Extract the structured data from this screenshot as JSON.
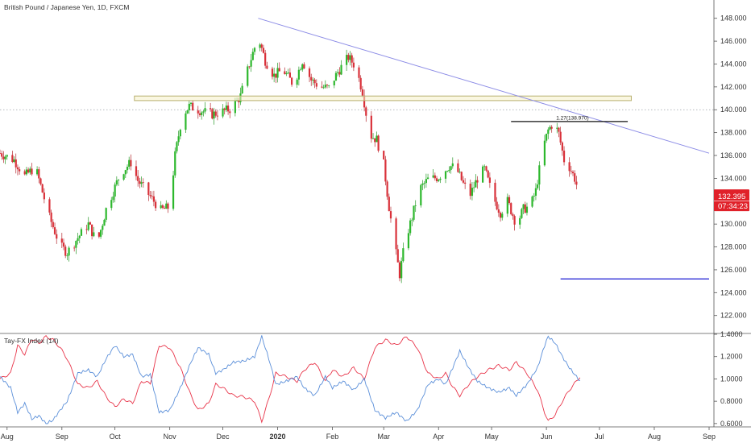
{
  "chart_data": [
    {
      "type": "candlestick",
      "title": "British Pound / Japanese Yen, 1D, FXCM",
      "price_axis": {
        "ylim": [
          120.5,
          149.6
        ],
        "ticks": [
          "148.000",
          "146.000",
          "144.000",
          "142.000",
          "140.000",
          "138.000",
          "136.000",
          "134.000",
          "132.000",
          "130.000",
          "128.000",
          "126.000",
          "124.000",
          "122.000"
        ],
        "tick_values": [
          148,
          146,
          144,
          142,
          140,
          138,
          136,
          134,
          132,
          130,
          128,
          126,
          124,
          122
        ]
      },
      "time_axis": {
        "labels": [
          "Aug",
          "Sep",
          "Oct",
          "Nov",
          "Dec",
          "2020",
          "Feb",
          "Mar",
          "Apr",
          "May",
          "Jun",
          "Jul",
          "Aug",
          "Sep"
        ],
        "label_day_index": [
          4,
          35,
          65,
          96,
          126,
          157,
          188,
          217,
          248,
          278,
          309,
          339,
          370,
          401
        ]
      },
      "last_price": "132.395",
      "countdown": "07:34:23",
      "dotted_level": 140.0,
      "colors": {
        "up": "#26a69a",
        "up_body": "#2db82d",
        "down": "#d9313a",
        "trend": "#8c8ce6",
        "zone": "#b8b070",
        "fib": "#111111",
        "target": "#2d2dd6",
        "price_label": "#e0212a"
      },
      "keyframes": [
        {
          "d": 0,
          "p": 136.2
        },
        {
          "d": 8,
          "p": 135.6
        },
        {
          "d": 14,
          "p": 134.2
        },
        {
          "d": 20,
          "p": 135.0
        },
        {
          "d": 28,
          "p": 130.6
        },
        {
          "d": 34,
          "p": 128.1
        },
        {
          "d": 38,
          "p": 127.5
        },
        {
          "d": 44,
          "p": 128.8
        },
        {
          "d": 50,
          "p": 130.0
        },
        {
          "d": 55,
          "p": 128.3
        },
        {
          "d": 60,
          "p": 131.3
        },
        {
          "d": 68,
          "p": 134.4
        },
        {
          "d": 74,
          "p": 135.4
        },
        {
          "d": 78,
          "p": 133.8
        },
        {
          "d": 84,
          "p": 132.6
        },
        {
          "d": 91,
          "p": 131.2
        },
        {
          "d": 96,
          "p": 131.5
        },
        {
          "d": 99,
          "p": 136.0
        },
        {
          "d": 103,
          "p": 139.5
        },
        {
          "d": 107,
          "p": 140.3
        },
        {
          "d": 114,
          "p": 139.9
        },
        {
          "d": 120,
          "p": 139.6
        },
        {
          "d": 125,
          "p": 139.8
        },
        {
          "d": 131,
          "p": 140.1
        },
        {
          "d": 136,
          "p": 141.2
        },
        {
          "d": 141,
          "p": 144.0
        },
        {
          "d": 146,
          "p": 146.4
        },
        {
          "d": 150,
          "p": 144.3
        },
        {
          "d": 155,
          "p": 143.0
        },
        {
          "d": 160,
          "p": 143.5
        },
        {
          "d": 166,
          "p": 142.2
        },
        {
          "d": 171,
          "p": 144.3
        },
        {
          "d": 176,
          "p": 142.6
        },
        {
          "d": 181,
          "p": 142.0
        },
        {
          "d": 186,
          "p": 141.9
        },
        {
          "d": 191,
          "p": 143.3
        },
        {
          "d": 197,
          "p": 144.6
        },
        {
          "d": 201,
          "p": 143.8
        },
        {
          "d": 205,
          "p": 141.6
        },
        {
          "d": 209,
          "p": 137.8
        },
        {
          "d": 213,
          "p": 137.4
        },
        {
          "d": 217,
          "p": 135.2
        },
        {
          "d": 220,
          "p": 131.5
        },
        {
          "d": 223,
          "p": 128.3
        },
        {
          "d": 226,
          "p": 125.6
        },
        {
          "d": 229,
          "p": 128.4
        },
        {
          "d": 233,
          "p": 130.6
        },
        {
          "d": 237,
          "p": 133.0
        },
        {
          "d": 242,
          "p": 133.9
        },
        {
          "d": 248,
          "p": 134.1
        },
        {
          "d": 254,
          "p": 135.1
        },
        {
          "d": 258,
          "p": 134.9
        },
        {
          "d": 262,
          "p": 133.5
        },
        {
          "d": 266,
          "p": 132.6
        },
        {
          "d": 270,
          "p": 134.0
        },
        {
          "d": 274,
          "p": 134.8
        },
        {
          "d": 279,
          "p": 132.3
        },
        {
          "d": 283,
          "p": 131.0
        },
        {
          "d": 287,
          "p": 132.0
        },
        {
          "d": 292,
          "p": 130.0
        },
        {
          "d": 296,
          "p": 131.3
        },
        {
          "d": 300,
          "p": 131.6
        },
        {
          "d": 303,
          "p": 132.9
        },
        {
          "d": 307,
          "p": 136.6
        },
        {
          "d": 310,
          "p": 138.2
        },
        {
          "d": 313,
          "p": 138.9
        },
        {
          "d": 316,
          "p": 137.9
        },
        {
          "d": 319,
          "p": 135.6
        },
        {
          "d": 322,
          "p": 135.0
        },
        {
          "d": 325,
          "p": 134.0
        },
        {
          "d": 328,
          "p": 132.4
        }
      ],
      "overlays": {
        "trendline": {
          "from": {
            "d": 146,
            "p": 148.0
          },
          "to": {
            "d": 401,
            "p": 136.2
          }
        },
        "zone": {
          "from_d": 76,
          "to_d": 357,
          "top": 141.2,
          "bottom": 140.8
        },
        "fib_line": {
          "from_d": 289,
          "to_d": 355,
          "p": 138.97,
          "label": "1.27(138.970)"
        },
        "target_line": {
          "from_d": 317,
          "to_d": 401,
          "p": 125.2
        }
      }
    },
    {
      "type": "line",
      "title": "Tay-FX Index (14)",
      "ylim": [
        0.57,
        1.4
      ],
      "ticks": [
        "1.4000",
        "1.2000",
        "1.0000",
        "0.8000",
        "0.6000"
      ],
      "tick_values": [
        1.4,
        1.2,
        1.0,
        0.8,
        0.6
      ],
      "series": [
        {
          "color": "#e8354a",
          "keyframes": [
            {
              "d": 0,
              "v": 1.0
            },
            {
              "d": 6,
              "v": 1.05
            },
            {
              "d": 10,
              "v": 1.3
            },
            {
              "d": 14,
              "v": 1.22
            },
            {
              "d": 18,
              "v": 1.36
            },
            {
              "d": 22,
              "v": 1.32
            },
            {
              "d": 26,
              "v": 1.38
            },
            {
              "d": 30,
              "v": 1.35
            },
            {
              "d": 34,
              "v": 1.28
            },
            {
              "d": 38,
              "v": 1.18
            },
            {
              "d": 44,
              "v": 0.95
            },
            {
              "d": 50,
              "v": 0.92
            },
            {
              "d": 55,
              "v": 0.98
            },
            {
              "d": 60,
              "v": 0.84
            },
            {
              "d": 65,
              "v": 0.75
            },
            {
              "d": 70,
              "v": 0.82
            },
            {
              "d": 75,
              "v": 0.78
            },
            {
              "d": 80,
              "v": 0.98
            },
            {
              "d": 85,
              "v": 0.96
            },
            {
              "d": 90,
              "v": 1.3
            },
            {
              "d": 96,
              "v": 1.28
            },
            {
              "d": 102,
              "v": 1.1
            },
            {
              "d": 108,
              "v": 0.85
            },
            {
              "d": 112,
              "v": 0.72
            },
            {
              "d": 118,
              "v": 0.78
            },
            {
              "d": 122,
              "v": 0.95
            },
            {
              "d": 126,
              "v": 0.92
            },
            {
              "d": 132,
              "v": 0.85
            },
            {
              "d": 138,
              "v": 0.84
            },
            {
              "d": 144,
              "v": 0.8
            },
            {
              "d": 148,
              "v": 0.62
            },
            {
              "d": 152,
              "v": 0.82
            },
            {
              "d": 156,
              "v": 1.05
            },
            {
              "d": 162,
              "v": 1.02
            },
            {
              "d": 168,
              "v": 0.98
            },
            {
              "d": 172,
              "v": 1.08
            },
            {
              "d": 178,
              "v": 1.15
            },
            {
              "d": 184,
              "v": 0.98
            },
            {
              "d": 188,
              "v": 1.08
            },
            {
              "d": 194,
              "v": 1.02
            },
            {
              "d": 200,
              "v": 1.1
            },
            {
              "d": 206,
              "v": 1.0
            },
            {
              "d": 212,
              "v": 1.28
            },
            {
              "d": 218,
              "v": 1.35
            },
            {
              "d": 224,
              "v": 1.3
            },
            {
              "d": 230,
              "v": 1.38
            },
            {
              "d": 236,
              "v": 1.28
            },
            {
              "d": 242,
              "v": 1.05
            },
            {
              "d": 248,
              "v": 1.0
            },
            {
              "d": 252,
              "v": 1.05
            },
            {
              "d": 256,
              "v": 0.93
            },
            {
              "d": 260,
              "v": 0.85
            },
            {
              "d": 265,
              "v": 0.95
            },
            {
              "d": 270,
              "v": 1.02
            },
            {
              "d": 276,
              "v": 1.08
            },
            {
              "d": 282,
              "v": 1.12
            },
            {
              "d": 288,
              "v": 1.08
            },
            {
              "d": 292,
              "v": 1.15
            },
            {
              "d": 298,
              "v": 1.05
            },
            {
              "d": 304,
              "v": 0.9
            },
            {
              "d": 308,
              "v": 0.7
            },
            {
              "d": 310,
              "v": 0.62
            },
            {
              "d": 314,
              "v": 0.68
            },
            {
              "d": 318,
              "v": 0.8
            },
            {
              "d": 322,
              "v": 0.9
            },
            {
              "d": 326,
              "v": 0.98
            },
            {
              "d": 328,
              "v": 1.02
            }
          ]
        },
        {
          "color": "#5b8fd9",
          "keyframes": [
            {
              "d": 0,
              "v": 1.02
            },
            {
              "d": 6,
              "v": 0.92
            },
            {
              "d": 10,
              "v": 0.7
            },
            {
              "d": 14,
              "v": 0.78
            },
            {
              "d": 18,
              "v": 0.64
            },
            {
              "d": 22,
              "v": 0.67
            },
            {
              "d": 26,
              "v": 0.6
            },
            {
              "d": 30,
              "v": 0.63
            },
            {
              "d": 34,
              "v": 0.72
            },
            {
              "d": 38,
              "v": 0.8
            },
            {
              "d": 44,
              "v": 1.05
            },
            {
              "d": 50,
              "v": 1.08
            },
            {
              "d": 55,
              "v": 1.02
            },
            {
              "d": 60,
              "v": 1.18
            },
            {
              "d": 65,
              "v": 1.3
            },
            {
              "d": 70,
              "v": 1.2
            },
            {
              "d": 75,
              "v": 1.22
            },
            {
              "d": 80,
              "v": 1.02
            },
            {
              "d": 85,
              "v": 1.04
            },
            {
              "d": 90,
              "v": 0.7
            },
            {
              "d": 96,
              "v": 0.72
            },
            {
              "d": 102,
              "v": 0.92
            },
            {
              "d": 108,
              "v": 1.15
            },
            {
              "d": 112,
              "v": 1.28
            },
            {
              "d": 118,
              "v": 1.22
            },
            {
              "d": 122,
              "v": 1.05
            },
            {
              "d": 126,
              "v": 1.08
            },
            {
              "d": 132,
              "v": 1.15
            },
            {
              "d": 138,
              "v": 1.16
            },
            {
              "d": 144,
              "v": 1.2
            },
            {
              "d": 148,
              "v": 1.38
            },
            {
              "d": 152,
              "v": 1.18
            },
            {
              "d": 156,
              "v": 0.95
            },
            {
              "d": 162,
              "v": 0.98
            },
            {
              "d": 168,
              "v": 1.02
            },
            {
              "d": 172,
              "v": 0.92
            },
            {
              "d": 178,
              "v": 0.85
            },
            {
              "d": 184,
              "v": 1.02
            },
            {
              "d": 188,
              "v": 0.92
            },
            {
              "d": 194,
              "v": 0.98
            },
            {
              "d": 200,
              "v": 0.9
            },
            {
              "d": 206,
              "v": 1.0
            },
            {
              "d": 212,
              "v": 0.72
            },
            {
              "d": 218,
              "v": 0.65
            },
            {
              "d": 224,
              "v": 0.7
            },
            {
              "d": 230,
              "v": 0.62
            },
            {
              "d": 236,
              "v": 0.72
            },
            {
              "d": 242,
              "v": 0.95
            },
            {
              "d": 248,
              "v": 1.0
            },
            {
              "d": 252,
              "v": 0.95
            },
            {
              "d": 256,
              "v": 1.1
            },
            {
              "d": 260,
              "v": 1.25
            },
            {
              "d": 265,
              "v": 1.1
            },
            {
              "d": 270,
              "v": 0.98
            },
            {
              "d": 276,
              "v": 0.92
            },
            {
              "d": 282,
              "v": 0.88
            },
            {
              "d": 288,
              "v": 0.92
            },
            {
              "d": 292,
              "v": 0.85
            },
            {
              "d": 298,
              "v": 0.95
            },
            {
              "d": 304,
              "v": 1.1
            },
            {
              "d": 308,
              "v": 1.3
            },
            {
              "d": 310,
              "v": 1.38
            },
            {
              "d": 314,
              "v": 1.32
            },
            {
              "d": 318,
              "v": 1.2
            },
            {
              "d": 322,
              "v": 1.1
            },
            {
              "d": 326,
              "v": 1.02
            },
            {
              "d": 328,
              "v": 0.98
            }
          ]
        }
      ]
    }
  ]
}
